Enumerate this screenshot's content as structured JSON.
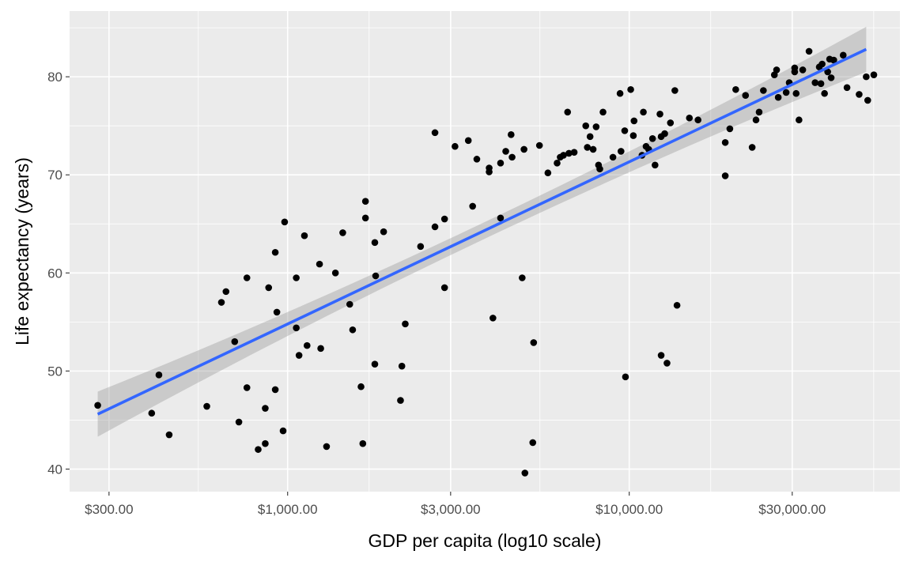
{
  "chart_data": {
    "type": "scatter",
    "title": "",
    "xlabel": "GDP per capita (log10 scale)",
    "ylabel": "Life expectancy (years)",
    "x_scale": "log10",
    "xlim": [
      230,
      62000
    ],
    "ylim": [
      37.7,
      86.7
    ],
    "x_ticks": [
      300,
      1000,
      3000,
      10000,
      30000
    ],
    "x_tick_labels": [
      "$300.00",
      "$1,000.00",
      "$3,000.00",
      "$10,000.00",
      "$30,000.00"
    ],
    "y_ticks": [
      40,
      50,
      60,
      70,
      80
    ],
    "y_tick_labels": [
      "40",
      "50",
      "60",
      "70",
      "80"
    ],
    "grid": true,
    "colors": {
      "panel": "#ebebeb",
      "grid": "#ffffff",
      "points": "#000000",
      "fit_line": "#3366ff",
      "ribbon": "#999999"
    },
    "series": [
      {
        "type": "points",
        "points": [
          [
            278,
            46.5
          ],
          [
            400,
            45.7
          ],
          [
            420,
            49.6
          ],
          [
            450,
            43.5
          ],
          [
            580,
            46.4
          ],
          [
            640,
            57
          ],
          [
            660,
            58.1
          ],
          [
            700,
            53
          ],
          [
            720,
            44.8
          ],
          [
            760,
            59.5
          ],
          [
            760,
            48.3
          ],
          [
            820,
            42
          ],
          [
            860,
            46.2
          ],
          [
            860,
            42.6
          ],
          [
            880,
            58.5
          ],
          [
            920,
            62.1
          ],
          [
            920,
            48.1
          ],
          [
            930,
            56
          ],
          [
            970,
            43.9
          ],
          [
            980,
            65.2
          ],
          [
            1060,
            59.5
          ],
          [
            1060,
            54.4
          ],
          [
            1080,
            51.6
          ],
          [
            1120,
            63.8
          ],
          [
            1140,
            52.6
          ],
          [
            1240,
            60.9
          ],
          [
            1250,
            52.3
          ],
          [
            1300,
            42.3
          ],
          [
            1380,
            60
          ],
          [
            1450,
            64.1
          ],
          [
            1520,
            56.8
          ],
          [
            1550,
            54.2
          ],
          [
            1640,
            48.4
          ],
          [
            1660,
            42.6
          ],
          [
            1690,
            65.6
          ],
          [
            1690,
            67.3
          ],
          [
            1800,
            63.1
          ],
          [
            1810,
            59.7
          ],
          [
            1800,
            50.7
          ],
          [
            1910,
            64.2
          ],
          [
            2140,
            47
          ],
          [
            2160,
            50.5
          ],
          [
            2210,
            54.8
          ],
          [
            2450,
            62.7
          ],
          [
            2700,
            74.3
          ],
          [
            2700,
            64.7
          ],
          [
            2880,
            58.5
          ],
          [
            2880,
            65.5
          ],
          [
            3090,
            72.9
          ],
          [
            3380,
            73.5
          ],
          [
            3480,
            66.8
          ],
          [
            3580,
            71.6
          ],
          [
            3890,
            70.7
          ],
          [
            3890,
            70.3
          ],
          [
            3990,
            55.4
          ],
          [
            4200,
            71.2
          ],
          [
            4200,
            65.6
          ],
          [
            4350,
            72.4
          ],
          [
            4510,
            74.1
          ],
          [
            4540,
            71.8
          ],
          [
            4860,
            59.5
          ],
          [
            4920,
            72.6
          ],
          [
            4950,
            39.6
          ],
          [
            5220,
            42.7
          ],
          [
            5250,
            52.9
          ],
          [
            5460,
            73
          ],
          [
            5780,
            70.2
          ],
          [
            6150,
            71.2
          ],
          [
            6280,
            71.8
          ],
          [
            6420,
            72
          ],
          [
            6600,
            76.4
          ],
          [
            6660,
            72.2
          ],
          [
            6900,
            72.3
          ],
          [
            7460,
            75
          ],
          [
            7540,
            72.8
          ],
          [
            7680,
            73.9
          ],
          [
            7840,
            72.6
          ],
          [
            8000,
            74.9
          ],
          [
            8130,
            71
          ],
          [
            8200,
            70.6
          ],
          [
            8380,
            76.4
          ],
          [
            8960,
            71.8
          ],
          [
            9400,
            78.3
          ],
          [
            9460,
            72.4
          ],
          [
            9700,
            74.5
          ],
          [
            9750,
            49.4
          ],
          [
            10100,
            78.7
          ],
          [
            10280,
            74
          ],
          [
            10330,
            75.5
          ],
          [
            10900,
            72
          ],
          [
            11000,
            76.4
          ],
          [
            11200,
            72.9
          ],
          [
            11400,
            72.6
          ],
          [
            11700,
            73.7
          ],
          [
            11900,
            71
          ],
          [
            12300,
            76.2
          ],
          [
            12400,
            73.9
          ],
          [
            12400,
            51.6
          ],
          [
            12700,
            74.2
          ],
          [
            12900,
            50.8
          ],
          [
            13200,
            75.3
          ],
          [
            13600,
            78.6
          ],
          [
            13800,
            56.7
          ],
          [
            15000,
            75.8
          ],
          [
            15900,
            75.6
          ],
          [
            19100,
            73.3
          ],
          [
            19100,
            69.9
          ],
          [
            19700,
            74.7
          ],
          [
            20500,
            78.7
          ],
          [
            21900,
            78.1
          ],
          [
            22900,
            72.8
          ],
          [
            23500,
            75.6
          ],
          [
            24000,
            76.4
          ],
          [
            24700,
            78.6
          ],
          [
            26600,
            80.2
          ],
          [
            27000,
            80.7
          ],
          [
            27300,
            77.9
          ],
          [
            28800,
            78.4
          ],
          [
            29400,
            79.4
          ],
          [
            30500,
            80.9
          ],
          [
            30500,
            80.5
          ],
          [
            30800,
            78.3
          ],
          [
            31400,
            75.6
          ],
          [
            32200,
            80.7
          ],
          [
            33600,
            82.6
          ],
          [
            35000,
            79.4
          ],
          [
            36000,
            81
          ],
          [
            36400,
            79.3
          ],
          [
            36700,
            81.3
          ],
          [
            37300,
            78.3
          ],
          [
            38100,
            80.5
          ],
          [
            38600,
            81.8
          ],
          [
            39000,
            79.9
          ],
          [
            39700,
            81.7
          ],
          [
            42300,
            82.2
          ],
          [
            43400,
            78.9
          ],
          [
            47100,
            78.2
          ],
          [
            49400,
            80
          ],
          [
            49900,
            77.6
          ],
          [
            52000,
            80.2
          ]
        ]
      },
      {
        "type": "fit",
        "method": "lm",
        "x_range": [
          278,
          49400
        ],
        "y_range": [
          45.6,
          82.8
        ],
        "ribbon_halfwidth_ends": 2.3,
        "ribbon_halfwidth_mid": 0.85
      }
    ]
  }
}
